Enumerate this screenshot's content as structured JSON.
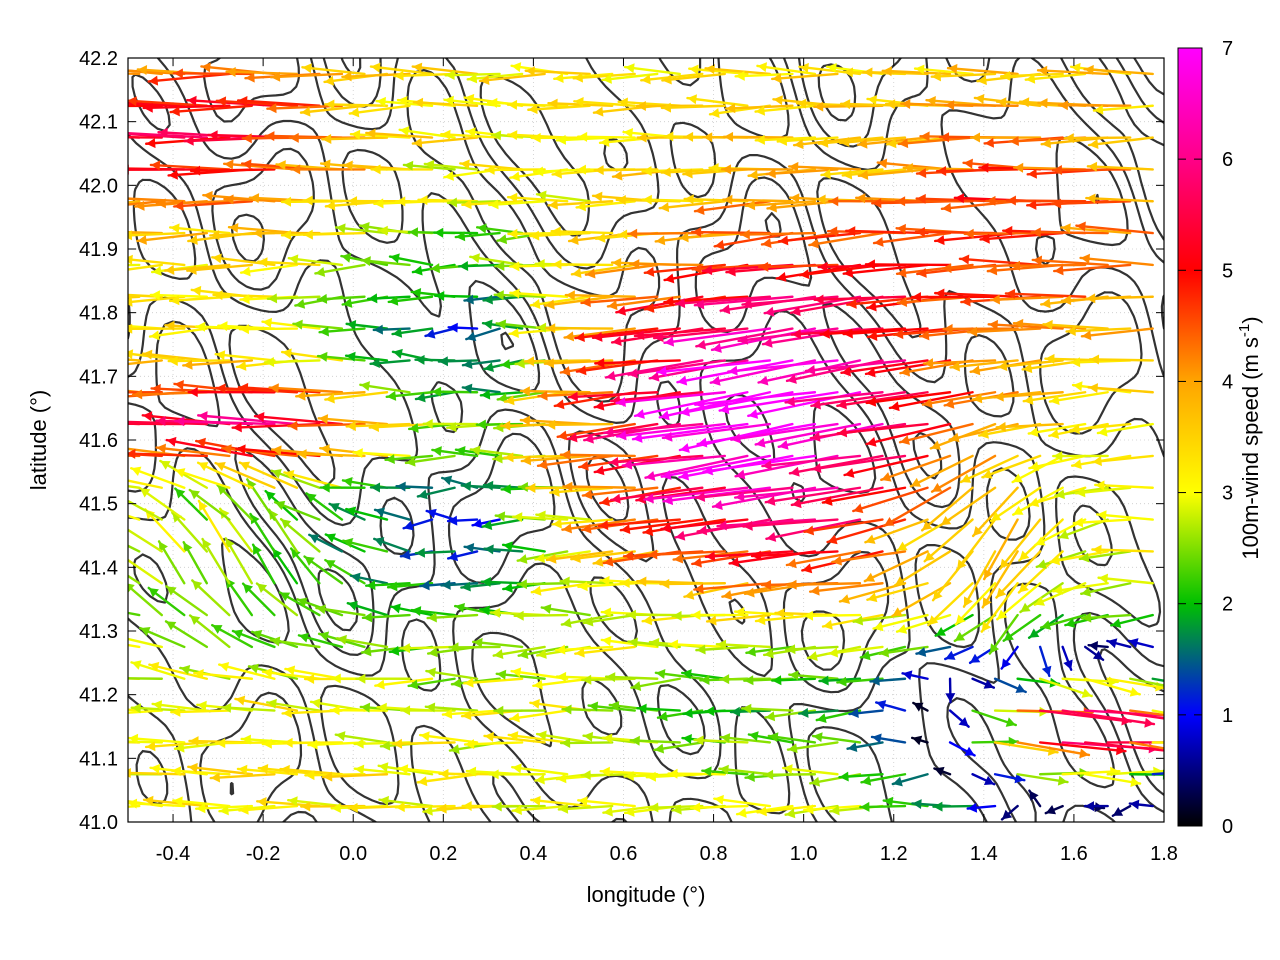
{
  "chart_data": {
    "type": "vector-field",
    "xlabel": "longitude (°)",
    "ylabel": "latitude (°)",
    "xlim": [
      -0.5,
      1.8
    ],
    "ylim": [
      41.0,
      42.2
    ],
    "xticks": [
      "-0.4",
      "-0.2",
      "0.0",
      "0.2",
      "0.4",
      "0.6",
      "0.8",
      "1.0",
      "1.2",
      "1.4",
      "1.6",
      "1.8"
    ],
    "yticks": [
      "41.0",
      "41.1",
      "41.2",
      "41.3",
      "41.4",
      "41.5",
      "41.6",
      "41.7",
      "41.8",
      "41.9",
      "42.0",
      "42.1",
      "42.2"
    ],
    "grid": true,
    "colorbar": {
      "label_main": "100m-wind speed (m s",
      "label_sup": "-1",
      "label_end": ")",
      "range": [
        0,
        7
      ],
      "ticks": [
        "0",
        "1",
        "2",
        "3",
        "4",
        "5",
        "6",
        "7"
      ],
      "palette": [
        "#000000",
        "#0000ff",
        "#00c000",
        "#ffff00",
        "#ffa500",
        "#ff0000",
        "#ff00ff"
      ]
    },
    "vector_field": {
      "field": "100m-wind",
      "units": "m s-1",
      "grid_spacing_deg": [
        0.05,
        0.05
      ],
      "prevailing_direction": "westward",
      "regions": [
        {
          "area": "northwest",
          "lon": [
            -0.5,
            0.2
          ],
          "lat": [
            41.9,
            42.2
          ],
          "speed": [
            3.5,
            6.0
          ]
        },
        {
          "area": "west-central",
          "lon": [
            -0.5,
            0.3
          ],
          "lat": [
            41.5,
            41.9
          ],
          "speed": [
            2.0,
            4.0
          ]
        },
        {
          "area": "west-coast band",
          "lon": [
            -0.5,
            0.4
          ],
          "lat": [
            41.55,
            41.7
          ],
          "speed": [
            5.0,
            7.0
          ]
        },
        {
          "area": "central weak zone",
          "lon": [
            0.0,
            0.5
          ],
          "lat": [
            41.2,
            41.9
          ],
          "speed": [
            0.5,
            2.0
          ]
        },
        {
          "area": "central jet",
          "lon": [
            0.7,
            1.4
          ],
          "lat": [
            41.5,
            41.9
          ],
          "speed": [
            6.5,
            7.0
          ]
        },
        {
          "area": "northeast",
          "lon": [
            1.2,
            1.8
          ],
          "lat": [
            41.8,
            42.2
          ],
          "speed": [
            3.5,
            6.0
          ]
        },
        {
          "area": "southwest",
          "lon": [
            -0.5,
            0.5
          ],
          "lat": [
            41.0,
            41.5
          ],
          "speed": [
            2.5,
            4.5
          ]
        },
        {
          "area": "south-central",
          "lon": [
            0.5,
            1.2
          ],
          "lat": [
            41.0,
            41.4
          ],
          "speed": [
            1.5,
            3.5
          ]
        },
        {
          "area": "southeast (eastward flow)",
          "lon": [
            1.3,
            1.8
          ],
          "lat": [
            41.0,
            41.3
          ],
          "speed": [
            4.0,
            7.0
          ]
        }
      ]
    },
    "contours": {
      "field": "terrain elevation",
      "color": "#333333"
    }
  }
}
